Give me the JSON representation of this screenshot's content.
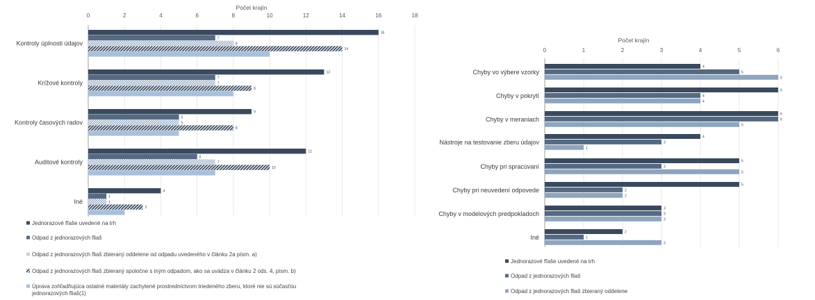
{
  "colors": {
    "series_0": "#3a4a5e",
    "series_1": "#556a82",
    "series_2": "#8ea5bf",
    "series_3": "#2f4158",
    "series_4": "#a9c0da"
  },
  "chart_data": [
    {
      "type": "bar",
      "orientation": "horizontal",
      "xlabel": "Počet krajín",
      "xlim": [
        0,
        18
      ],
      "xticks": [
        0,
        2,
        4,
        6,
        8,
        10,
        12,
        14,
        16,
        18
      ],
      "categories": [
        "Kontroly úplnosti údajov",
        "Krížové kontroly",
        "Kontroly časových radov",
        "Auditové kontroly",
        "Iné"
      ],
      "series": [
        {
          "name": "Jednorazové fľaše uvedené na trh",
          "pattern": "solid",
          "color_key": "series_0",
          "values": [
            16,
            13,
            9,
            12,
            4
          ]
        },
        {
          "name": "Odpad z jednorazových fliaš",
          "pattern": "solid",
          "color_key": "series_1",
          "values": [
            7,
            7,
            5,
            6,
            1
          ]
        },
        {
          "name": "Odpad z jednorazových fliaš zbieraný oddelene od odpadu uvedeného v článku 2a písm. a)",
          "pattern": "checker",
          "color_key": "series_2",
          "values": [
            8,
            7,
            5,
            7,
            1
          ]
        },
        {
          "name": "Odpad z jednorazových fliaš zbieraný spoločne s iným odpadom, ako sa uvádza v článku 2 ods. 4, písm. b)",
          "pattern": "diagonal",
          "color_key": "series_3",
          "values": [
            14,
            9,
            8,
            10,
            3
          ]
        },
        {
          "name": "Úprava zohľadňujúca ostatné materiály zachytené prostredníctvom triedeného zberu, ktoré nie sú súčasťou jednorazových fliaš(1)",
          "pattern": "solid",
          "color_key": "series_4",
          "values": [
            10,
            8,
            5,
            7,
            2
          ]
        }
      ],
      "data_labels_series": [
        0,
        1,
        2,
        3
      ]
    },
    {
      "type": "bar",
      "orientation": "horizontal",
      "xlabel": "Počet krajín",
      "xlim": [
        0,
        6
      ],
      "xticks": [
        0,
        1,
        2,
        3,
        4,
        5,
        6
      ],
      "categories": [
        "Chyby vo výbere vzorky",
        "Chyby v pokrytí",
        "Chyby v meraniach",
        "Nástroje na testovanie zberu údajov",
        "Chyby pri spracúvaní",
        "Chyby pri neuvedení odpovede",
        "Chyby v modelových predpokladoch",
        "Iné"
      ],
      "series": [
        {
          "name": "Jednorazové fľaše uvedené na trh",
          "pattern": "solid",
          "color_key": "series_0",
          "values": [
            4,
            6,
            6,
            4,
            5,
            5,
            3,
            2
          ]
        },
        {
          "name": "Odpad z jednorazových fliaš",
          "pattern": "solid",
          "color_key": "series_1",
          "values": [
            5,
            4,
            6,
            3,
            3,
            2,
            3,
            1
          ]
        },
        {
          "name": "Odpad z jednorazových fliaš zbieraný oddelene",
          "pattern": "solid",
          "color_key": "series_2",
          "values": [
            6,
            4,
            5,
            1,
            5,
            2,
            3,
            3
          ]
        }
      ],
      "data_labels_series": [
        0,
        1,
        2
      ]
    }
  ]
}
